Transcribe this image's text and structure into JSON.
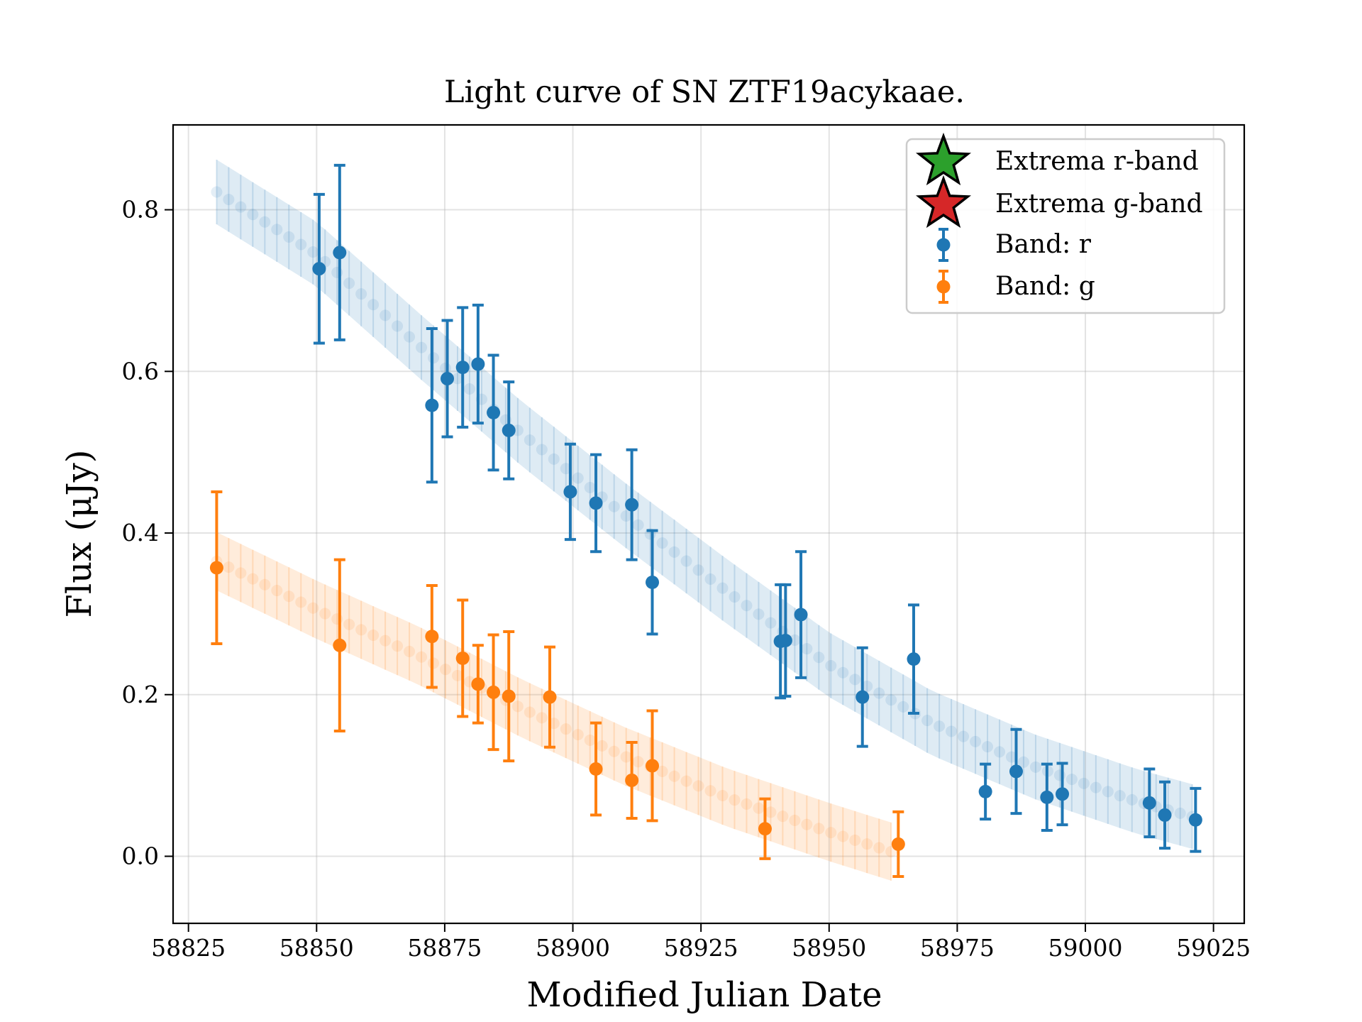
{
  "chart_data": {
    "type": "scatter",
    "title": "Light curve of SN ZTF19acykaae.",
    "xlabel": "Modified Julian Date",
    "ylabel": "Flux (μJy)",
    "xlim": [
      58822,
      59031
    ],
    "ylim": [
      -0.083,
      0.905
    ],
    "xticks": [
      58825,
      58850,
      58875,
      58900,
      58925,
      58950,
      58975,
      59000,
      59025
    ],
    "yticks": [
      0.0,
      0.2,
      0.4,
      0.6,
      0.8
    ],
    "grid": true,
    "legend_position": "upper right",
    "legend": [
      {
        "label": "Extrema r-band",
        "marker": "star",
        "color": "#2ca02c"
      },
      {
        "label": "Extrema g-band",
        "marker": "star",
        "color": "#d62728"
      },
      {
        "label": "Band: r",
        "marker": "errorbar",
        "color": "#1f77b4"
      },
      {
        "label": "Band: g",
        "marker": "errorbar",
        "color": "#ff7f0e"
      }
    ],
    "series": [
      {
        "name": "Band: r",
        "color": "#1f77b4",
        "points": [
          {
            "x": 58850.5,
            "y": 0.727,
            "err": 0.092
          },
          {
            "x": 58854.5,
            "y": 0.747,
            "err": 0.108
          },
          {
            "x": 58872.5,
            "y": 0.558,
            "err": 0.095
          },
          {
            "x": 58875.5,
            "y": 0.591,
            "err": 0.072
          },
          {
            "x": 58878.5,
            "y": 0.605,
            "err": 0.074
          },
          {
            "x": 58881.5,
            "y": 0.609,
            "err": 0.073
          },
          {
            "x": 58884.5,
            "y": 0.549,
            "err": 0.071
          },
          {
            "x": 58887.5,
            "y": 0.527,
            "err": 0.06
          },
          {
            "x": 58899.5,
            "y": 0.451,
            "err": 0.059
          },
          {
            "x": 58904.5,
            "y": 0.437,
            "err": 0.06
          },
          {
            "x": 58911.5,
            "y": 0.435,
            "err": 0.068
          },
          {
            "x": 58915.5,
            "y": 0.339,
            "err": 0.064
          },
          {
            "x": 58940.5,
            "y": 0.266,
            "err": 0.07
          },
          {
            "x": 58941.5,
            "y": 0.267,
            "err": 0.069
          },
          {
            "x": 58944.5,
            "y": 0.299,
            "err": 0.078
          },
          {
            "x": 58956.5,
            "y": 0.197,
            "err": 0.061
          },
          {
            "x": 58966.5,
            "y": 0.244,
            "err": 0.067
          },
          {
            "x": 58980.5,
            "y": 0.08,
            "err": 0.034
          },
          {
            "x": 58986.5,
            "y": 0.105,
            "err": 0.052
          },
          {
            "x": 58992.5,
            "y": 0.073,
            "err": 0.041
          },
          {
            "x": 58995.5,
            "y": 0.077,
            "err": 0.038
          },
          {
            "x": 59012.5,
            "y": 0.066,
            "err": 0.042
          },
          {
            "x": 59015.5,
            "y": 0.051,
            "err": 0.041
          },
          {
            "x": 59021.5,
            "y": 0.045,
            "err": 0.039
          }
        ],
        "model": {
          "x_start": 58830.5,
          "x_end": 59021.5,
          "step": 2.35,
          "band_halfwidth": 0.04,
          "anchors": [
            [
              58830.5,
              0.822
            ],
            [
              58850,
              0.745
            ],
            [
              58870,
              0.632
            ],
            [
              58890,
              0.523
            ],
            [
              58910,
              0.423
            ],
            [
              58930,
              0.328
            ],
            [
              58950,
              0.237
            ],
            [
              58970,
              0.165
            ],
            [
              58990,
              0.111
            ],
            [
              59010,
              0.068
            ],
            [
              59021.5,
              0.048
            ]
          ]
        }
      },
      {
        "name": "Band: g",
        "color": "#ff7f0e",
        "points": [
          {
            "x": 58830.5,
            "y": 0.357,
            "err": 0.094
          },
          {
            "x": 58854.5,
            "y": 0.261,
            "err": 0.106
          },
          {
            "x": 58872.5,
            "y": 0.272,
            "err": 0.063
          },
          {
            "x": 58878.5,
            "y": 0.245,
            "err": 0.072
          },
          {
            "x": 58881.5,
            "y": 0.213,
            "err": 0.048
          },
          {
            "x": 58884.5,
            "y": 0.203,
            "err": 0.071
          },
          {
            "x": 58887.5,
            "y": 0.198,
            "err": 0.08
          },
          {
            "x": 58895.5,
            "y": 0.197,
            "err": 0.062
          },
          {
            "x": 58904.5,
            "y": 0.108,
            "err": 0.057
          },
          {
            "x": 58911.5,
            "y": 0.094,
            "err": 0.047
          },
          {
            "x": 58915.5,
            "y": 0.112,
            "err": 0.068
          },
          {
            "x": 58937.5,
            "y": 0.034,
            "err": 0.037
          },
          {
            "x": 58963.5,
            "y": 0.015,
            "err": 0.04
          }
        ],
        "model": {
          "x_start": 58830.5,
          "x_end": 58963.5,
          "step": 2.35,
          "band_halfwidth": 0.036,
          "anchors": [
            [
              58830.5,
              0.365
            ],
            [
              58850,
              0.305
            ],
            [
              58870,
              0.248
            ],
            [
              58890,
              0.183
            ],
            [
              58910,
              0.124
            ],
            [
              58930,
              0.073
            ],
            [
              58950,
              0.03
            ],
            [
              58963.5,
              0.003
            ]
          ]
        }
      }
    ]
  }
}
